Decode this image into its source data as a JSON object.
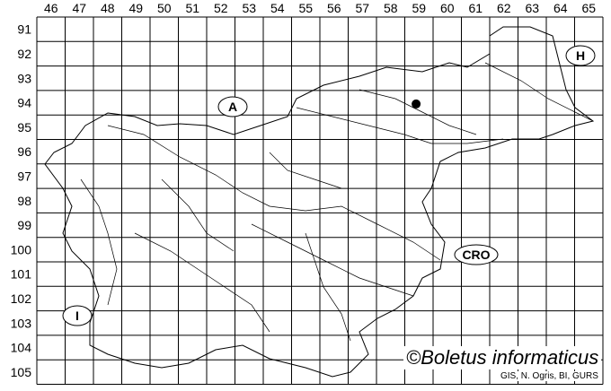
{
  "grid": {
    "columns": [
      "46",
      "47",
      "48",
      "49",
      "50",
      "51",
      "52",
      "53",
      "54",
      "55",
      "56",
      "57",
      "58",
      "59",
      "60",
      "61",
      "62",
      "63",
      "64",
      "65"
    ],
    "rows": [
      "91",
      "92",
      "93",
      "94",
      "95",
      "96",
      "97",
      "98",
      "99",
      "100",
      "101",
      "102",
      "103",
      "104",
      "105"
    ]
  },
  "country_labels": [
    {
      "code": "A"
    },
    {
      "code": "H"
    },
    {
      "code": "CRO"
    },
    {
      "code": "I"
    }
  ],
  "occurrence_marker": {
    "column": "59",
    "row": "94",
    "color": "#000000"
  },
  "credit": "©Boletus informaticus",
  "source": "GIS, N. Ogris, BI, GURS"
}
